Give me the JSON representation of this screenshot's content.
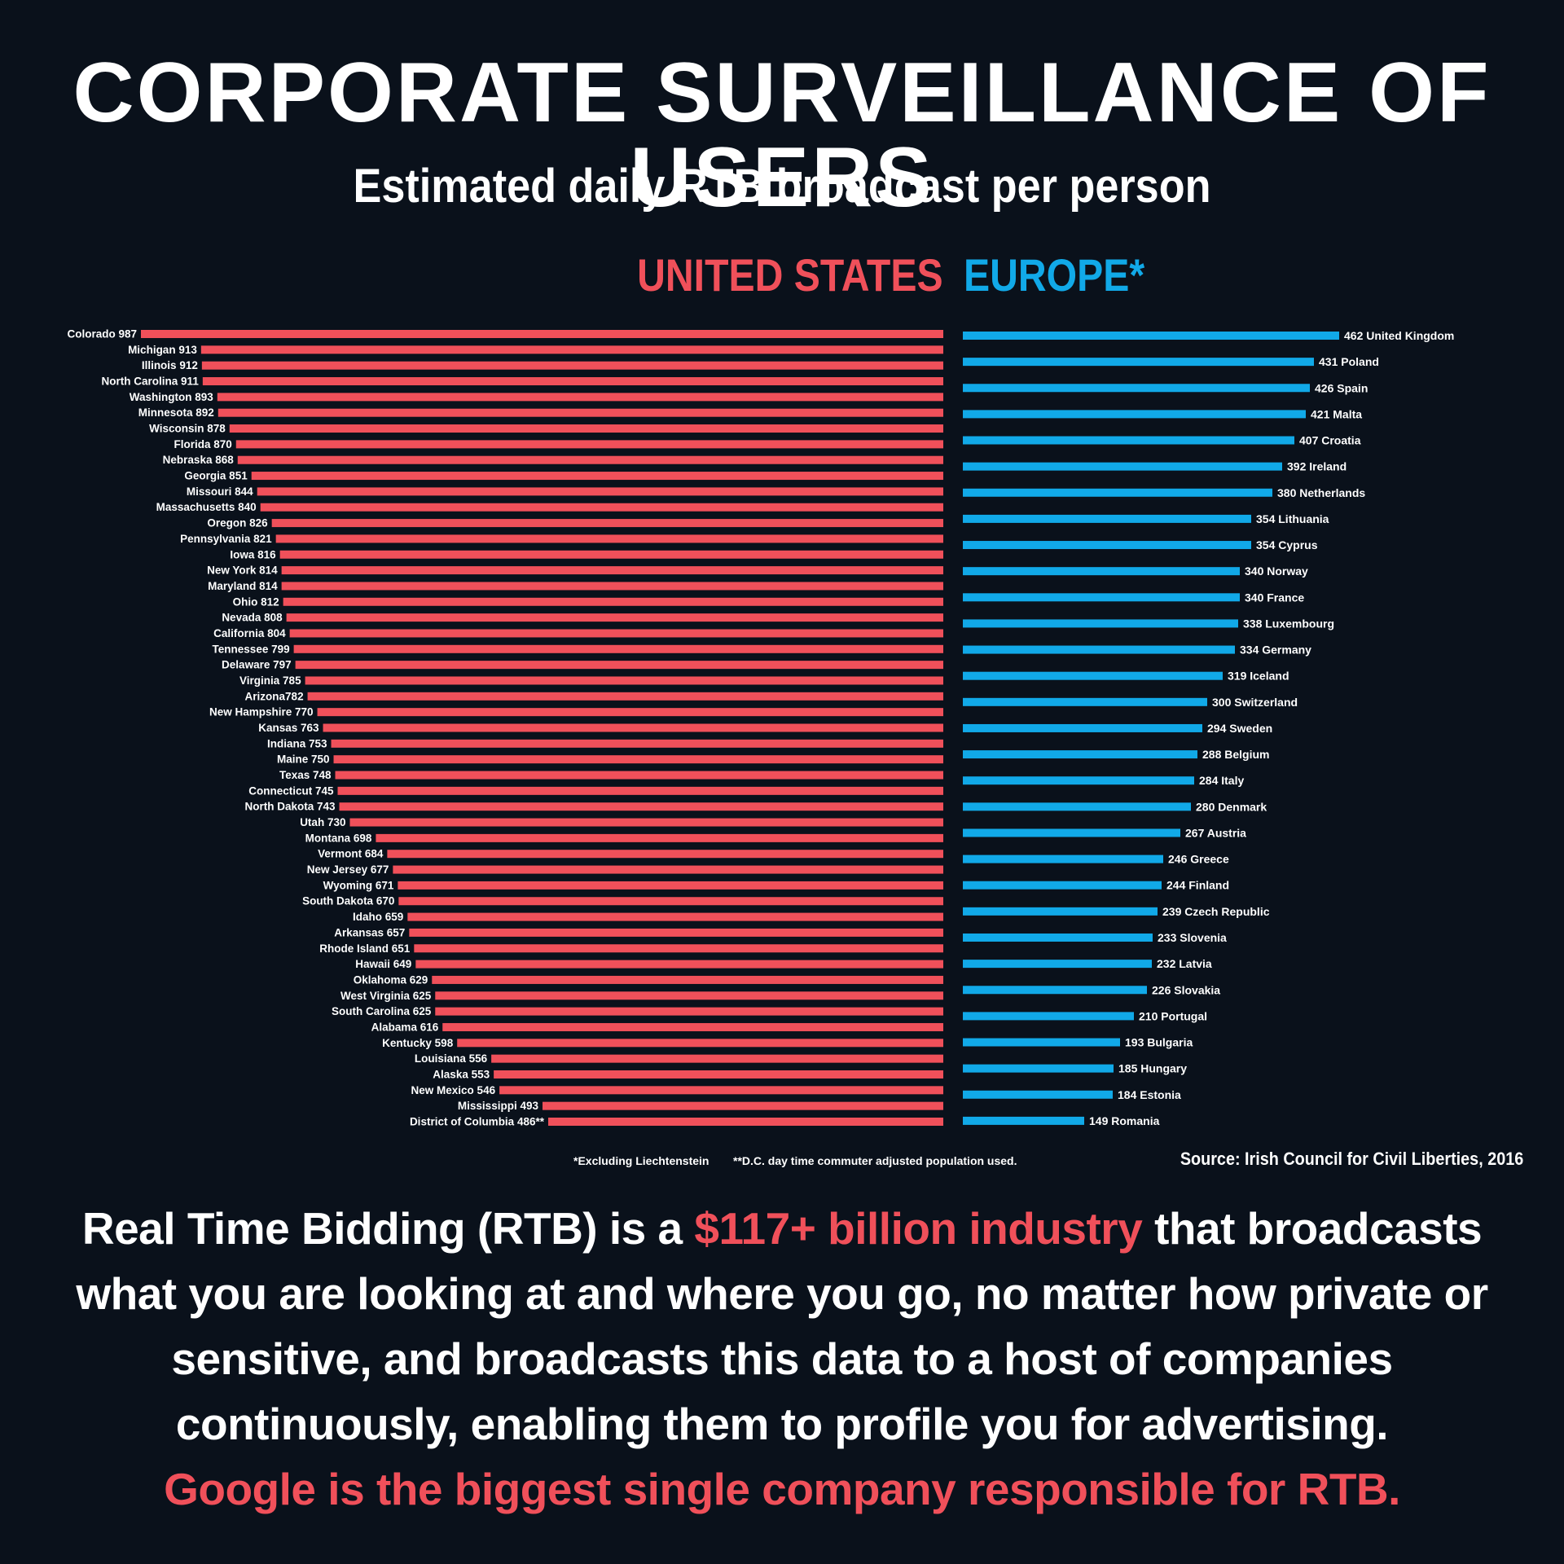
{
  "header": {
    "title": "CORPORATE SURVEILLANCE OF USERS",
    "subtitle": "Estimated daily RTB broadcast per person"
  },
  "legend": {
    "us": "UNITED STATES",
    "eu": "EUROPE*"
  },
  "colors": {
    "us": "#f0505a",
    "eu": "#11a9e8",
    "background": "#0a111b"
  },
  "chart_data": [
    {
      "type": "bar",
      "orientation": "horizontal",
      "title": "UNITED STATES",
      "labels": [
        "Colorado 987",
        "Michigan 913",
        "Illinois 912",
        "North Carolina 911",
        "Washington 893",
        "Minnesota 892",
        "Wisconsin 878",
        "Florida 870",
        "Nebraska 868",
        "Georgia 851",
        "Missouri 844",
        "Massachusetts 840",
        "Oregon 826",
        "Pennsylvania 821",
        "Iowa 816",
        "New York 814",
        "Maryland 814",
        "Ohio 812",
        "Nevada 808",
        "California 804",
        "Tennessee 799",
        "Delaware 797",
        "Virginia 785",
        "Arizona782",
        "New Hampshire 770",
        "Kansas 763",
        "Indiana 753",
        "Maine 750",
        "Texas 748",
        "Connecticut 745",
        "North Dakota 743",
        "Utah 730",
        "Montana 698",
        "Vermont 684",
        "New Jersey 677",
        "Wyoming 671",
        "South Dakota 670",
        "Idaho 659",
        "Arkansas 657",
        "Rhode Island 651",
        "Hawaii 649",
        "Oklahoma 629",
        "West Virginia 625",
        "South Carolina 625",
        "Alabama 616",
        "Kentucky 598",
        "Louisiana 556",
        "Alaska 553",
        "New Mexico 546",
        "Mississippi 493",
        "District of Columbia 486**"
      ],
      "values": [
        987,
        913,
        912,
        911,
        893,
        892,
        878,
        870,
        868,
        851,
        844,
        840,
        826,
        821,
        816,
        814,
        814,
        812,
        808,
        804,
        799,
        797,
        785,
        782,
        770,
        763,
        753,
        750,
        748,
        745,
        743,
        730,
        698,
        684,
        677,
        671,
        670,
        659,
        657,
        651,
        649,
        629,
        625,
        625,
        616,
        598,
        556,
        553,
        546,
        493,
        486
      ],
      "xlim": [
        0,
        987
      ],
      "grid": false
    },
    {
      "type": "bar",
      "orientation": "horizontal",
      "title": "EUROPE*",
      "labels": [
        "462 United Kingdom",
        "431 Poland",
        "426 Spain",
        "421 Malta",
        "407 Croatia",
        "392 Ireland",
        "380 Netherlands",
        "354 Lithuania",
        "354 Cyprus",
        "340 Norway",
        "340 France",
        "338 Luxembourg",
        "334 Germany",
        "319 Iceland",
        "300 Switzerland",
        "294 Sweden",
        "288 Belgium",
        "284 Italy",
        "280 Denmark",
        "267 Austria",
        "246 Greece",
        "244 Finland",
        "239 Czech Republic",
        "233 Slovenia",
        "232 Latvia",
        "226 Slovakia",
        "210 Portugal",
        "193 Bulgaria",
        "185 Hungary",
        "184 Estonia",
        "149 Romania"
      ],
      "values": [
        462,
        431,
        426,
        421,
        407,
        392,
        380,
        354,
        354,
        340,
        340,
        338,
        334,
        319,
        300,
        294,
        288,
        284,
        280,
        267,
        246,
        244,
        239,
        233,
        232,
        226,
        210,
        193,
        185,
        184,
        149
      ],
      "xlim": [
        0,
        462
      ],
      "grid": false
    }
  ],
  "footnotes": {
    "fn1": "*Excluding Liechtenstein",
    "fn2": "**D.C. day time commuter adjusted population used."
  },
  "source": "Source: Irish Council for Civil Liberties, 2016",
  "body": {
    "part1": "Real Time Bidding (RTB) is a ",
    "highlight": "$117+ billion industry",
    "part2": " that broadcasts what you are looking at and where you go, no matter how private or sensitive, and broadcasts this data to a host of companies continuously, enabling them to profile you for advertising.",
    "conclusion": "Google is the biggest single company responsible for RTB."
  }
}
